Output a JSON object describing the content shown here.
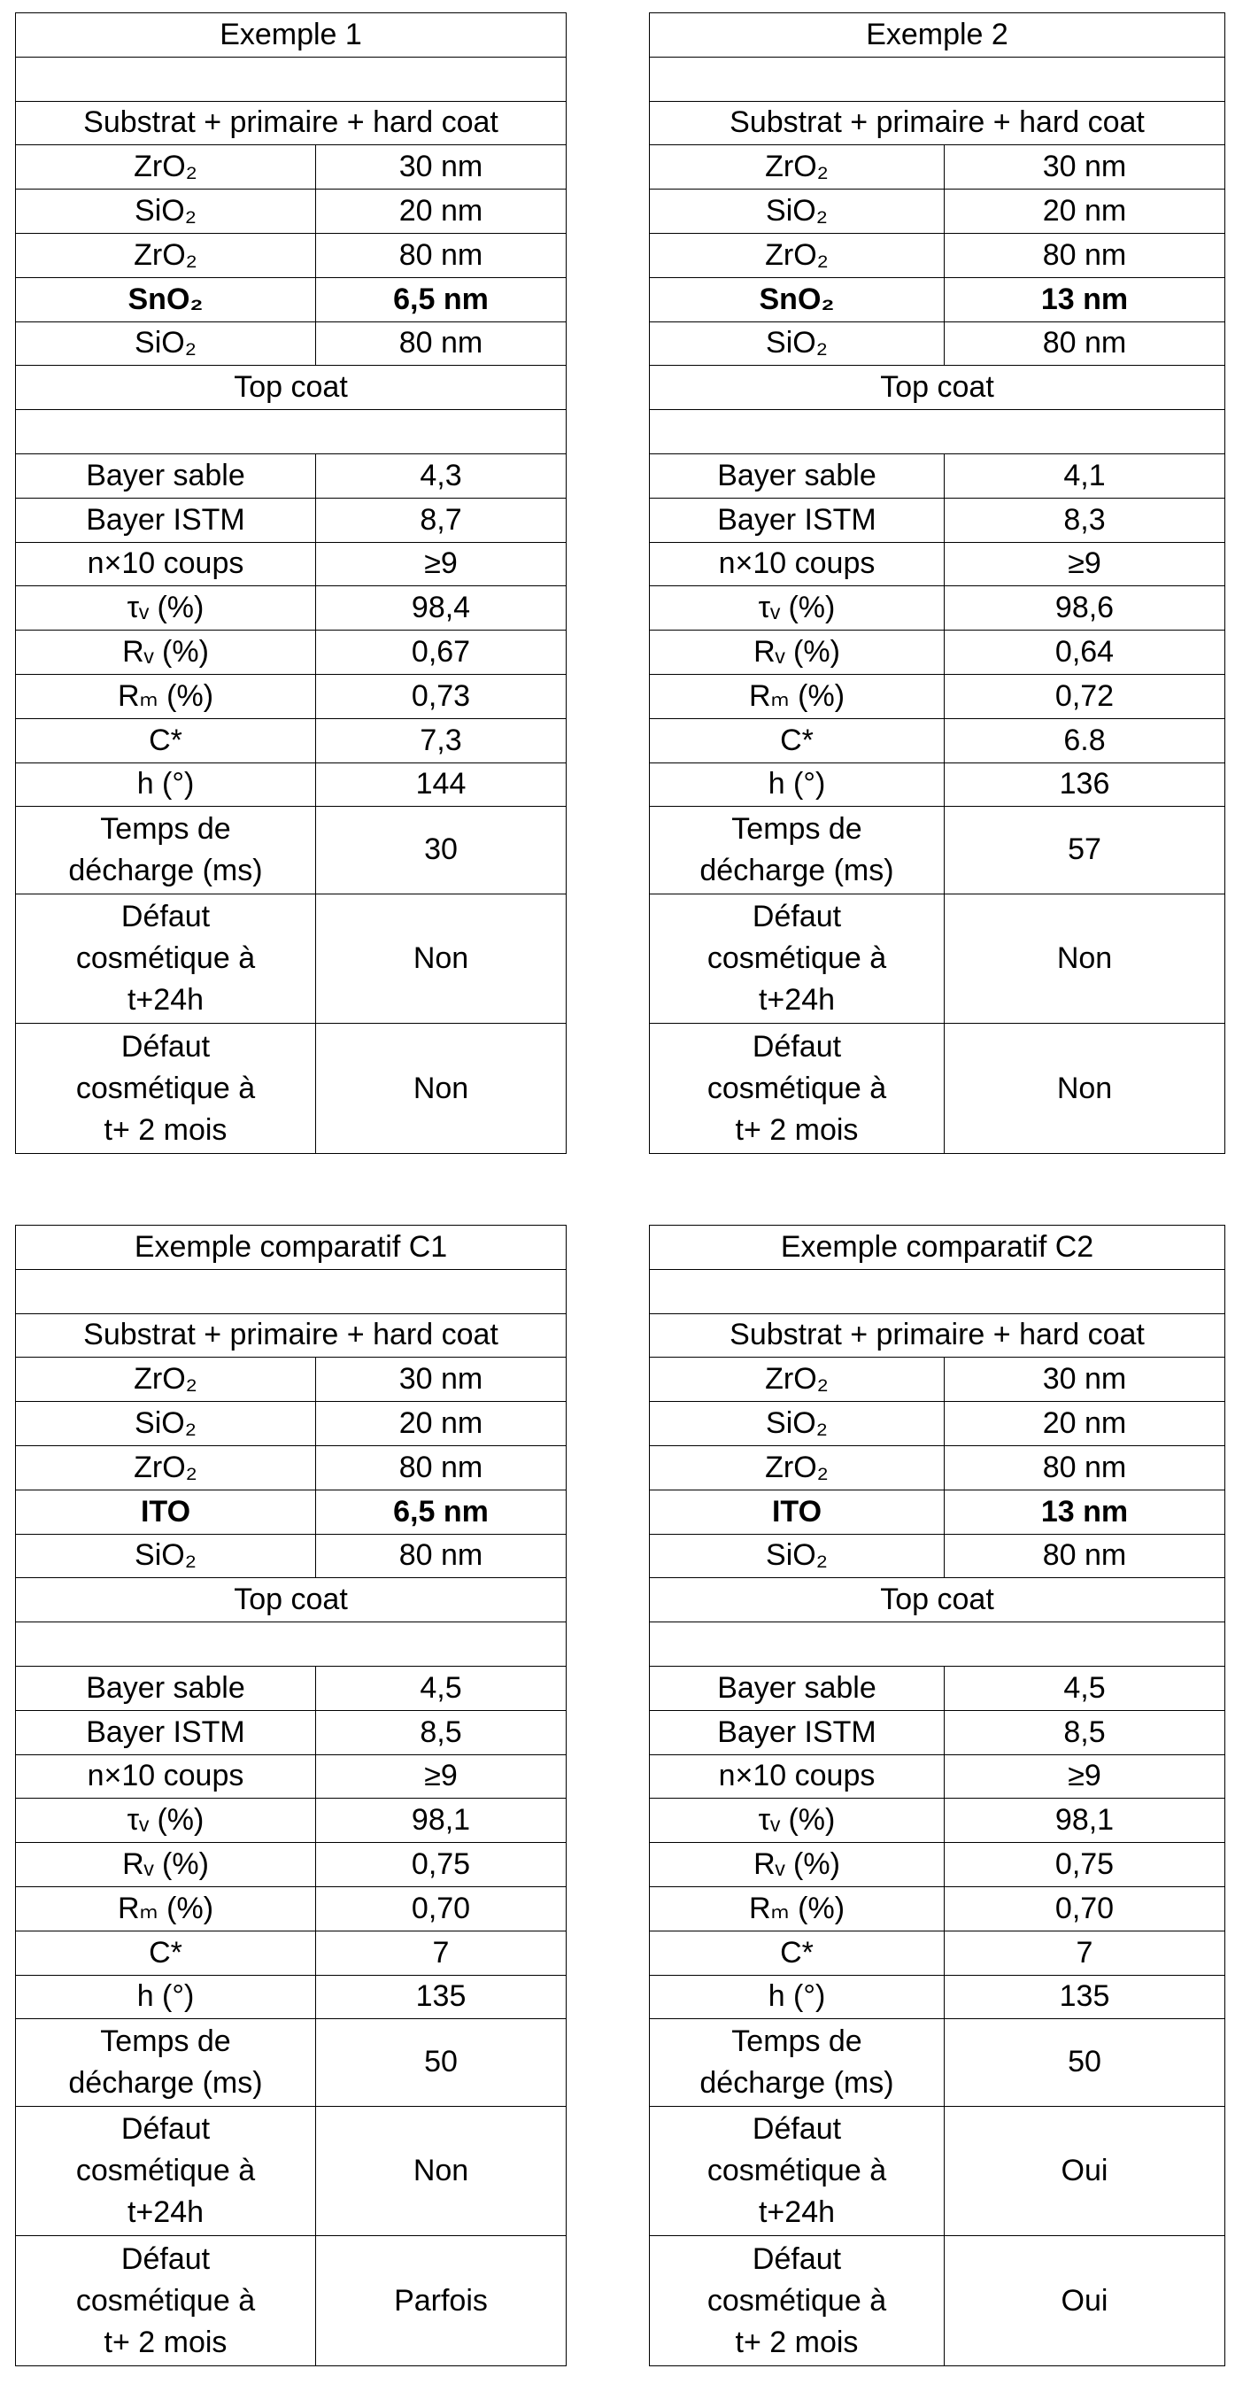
{
  "tables": [
    {
      "title": "Exemple 1",
      "substrate": "Substrat + primaire + hard coat",
      "layers": [
        [
          "ZrO₂",
          "30 nm"
        ],
        [
          "SiO₂",
          "20 nm"
        ],
        [
          "ZrO₂",
          "80 nm"
        ],
        [
          "SnO₂",
          "6,5 nm"
        ],
        [
          "SiO₂",
          "80 nm"
        ]
      ],
      "top": "Top coat",
      "results": [
        [
          "Bayer sable",
          "4,3"
        ],
        [
          "Bayer ISTM",
          "8,7"
        ],
        [
          "n×10 coups",
          "≥9"
        ],
        [
          "τᵥ (%)",
          "98,4"
        ],
        [
          "Rᵥ (%)",
          "0,67"
        ],
        [
          "Rₘ (%)",
          "0,73"
        ],
        [
          "C*",
          "7,3"
        ],
        [
          "h (°)",
          "144"
        ],
        [
          "Temps de\ndécharge (ms)",
          "30"
        ],
        [
          "Défaut\ncosmétique à\nt+24h",
          "Non"
        ],
        [
          "Défaut\ncosmétique à\nt+ 2 mois",
          "Non"
        ]
      ]
    },
    {
      "title": "Exemple 2",
      "substrate": "Substrat + primaire + hard coat",
      "layers": [
        [
          "ZrO₂",
          "30 nm"
        ],
        [
          "SiO₂",
          "20 nm"
        ],
        [
          "ZrO₂",
          "80 nm"
        ],
        [
          "SnO₂",
          "13 nm"
        ],
        [
          "SiO₂",
          "80 nm"
        ]
      ],
      "top": "Top coat",
      "results": [
        [
          "Bayer sable",
          "4,1"
        ],
        [
          "Bayer ISTM",
          "8,3"
        ],
        [
          "n×10 coups",
          "≥9"
        ],
        [
          "τᵥ (%)",
          "98,6"
        ],
        [
          "Rᵥ (%)",
          "0,64"
        ],
        [
          "Rₘ (%)",
          "0,72"
        ],
        [
          "C*",
          "6.8"
        ],
        [
          "h (°)",
          "136"
        ],
        [
          "Temps de\ndécharge (ms)",
          "57"
        ],
        [
          "Défaut\ncosmétique à\nt+24h",
          "Non"
        ],
        [
          "Défaut\ncosmétique à\nt+ 2 mois",
          "Non"
        ]
      ]
    },
    {
      "title": "Exemple comparatif C1",
      "substrate": "Substrat + primaire + hard coat",
      "layers": [
        [
          "ZrO₂",
          "30 nm"
        ],
        [
          "SiO₂",
          "20 nm"
        ],
        [
          "ZrO₂",
          "80 nm"
        ],
        [
          "ITO",
          "6,5 nm"
        ],
        [
          "SiO₂",
          "80 nm"
        ]
      ],
      "top": "Top coat",
      "results": [
        [
          "Bayer sable",
          "4,5"
        ],
        [
          "Bayer ISTM",
          "8,5"
        ],
        [
          "n×10 coups",
          "≥9"
        ],
        [
          "τᵥ (%)",
          "98,1"
        ],
        [
          "Rᵥ (%)",
          "0,75"
        ],
        [
          "Rₘ (%)",
          "0,70"
        ],
        [
          "C*",
          "7"
        ],
        [
          "h (°)",
          "135"
        ],
        [
          "Temps de\ndécharge (ms)",
          "50"
        ],
        [
          "Défaut\ncosmétique à\nt+24h",
          "Non"
        ],
        [
          "Défaut\ncosmétique à\nt+ 2 mois",
          "Parfois"
        ]
      ]
    },
    {
      "title": "Exemple comparatif C2",
      "substrate": "Substrat + primaire + hard coat",
      "layers": [
        [
          "ZrO₂",
          "30 nm"
        ],
        [
          "SiO₂",
          "20 nm"
        ],
        [
          "ZrO₂",
          "80 nm"
        ],
        [
          "ITO",
          "13 nm"
        ],
        [
          "SiO₂",
          "80 nm"
        ]
      ],
      "top": "Top coat",
      "results": [
        [
          "Bayer sable",
          "4,5"
        ],
        [
          "Bayer ISTM",
          "8,5"
        ],
        [
          "n×10 coups",
          "≥9"
        ],
        [
          "τᵥ (%)",
          "98,1"
        ],
        [
          "Rᵥ (%)",
          "0,75"
        ],
        [
          "Rₘ (%)",
          "0,70"
        ],
        [
          "C*",
          "7"
        ],
        [
          "h (°)",
          "135"
        ],
        [
          "Temps de\ndécharge (ms)",
          "50"
        ],
        [
          "Défaut\ncosmétique à\nt+24h",
          "Oui"
        ],
        [
          "Défaut\ncosmétique à\nt+ 2 mois",
          "Oui"
        ]
      ]
    }
  ]
}
